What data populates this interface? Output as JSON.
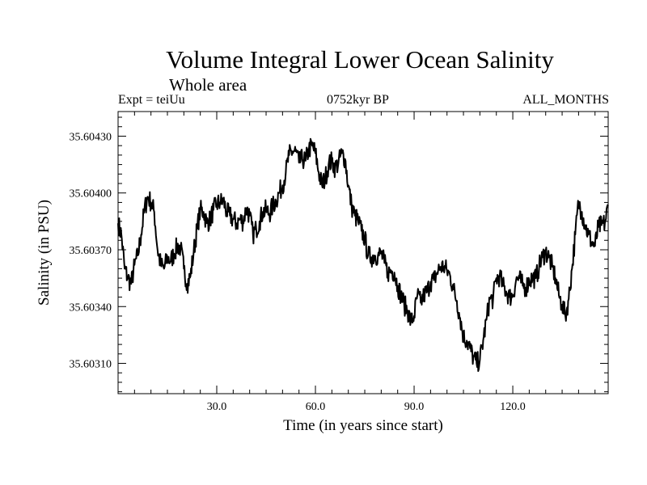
{
  "chart_data": {
    "type": "line",
    "title": "Volume Integral Lower Ocean Salinity",
    "subtitle": "Whole area",
    "header_left": "Expt = teiUu",
    "header_center": "0752kyr BP",
    "header_right": "ALL_MONTHS",
    "xlabel": "Time (in years since start)",
    "ylabel": "Salinity (in PSU)",
    "xlim": [
      0,
      149
    ],
    "ylim": [
      35.60294,
      35.60443
    ],
    "xticks": [
      30,
      60,
      90,
      120
    ],
    "xtick_labels": [
      "30.0",
      "60.0",
      "90.0",
      "120.0"
    ],
    "yticks": [
      35.6031,
      35.6034,
      35.6037,
      35.604,
      35.6043
    ],
    "ytick_labels": [
      "35.60310",
      "35.60340",
      "35.60370",
      "35.60400",
      "35.60430"
    ],
    "series": [
      {
        "name": "Salinity",
        "x": [
          0,
          1,
          2,
          3,
          4,
          5,
          6,
          7,
          8,
          9,
          10,
          11,
          12,
          13,
          14,
          15,
          16,
          17,
          18,
          19,
          20,
          21,
          22,
          23,
          24,
          25,
          26,
          27,
          28,
          29,
          30,
          31,
          32,
          33,
          34,
          35,
          36,
          37,
          38,
          39,
          40,
          41,
          42,
          43,
          44,
          45,
          46,
          47,
          48,
          49,
          50,
          51,
          52,
          53,
          54,
          55,
          56,
          57,
          58,
          59,
          60,
          61,
          62,
          63,
          64,
          65,
          66,
          67,
          68,
          69,
          70,
          71,
          72,
          73,
          74,
          75,
          76,
          77,
          78,
          79,
          80,
          81,
          82,
          83,
          84,
          85,
          86,
          87,
          88,
          89,
          90,
          91,
          92,
          93,
          94,
          95,
          96,
          97,
          98,
          99,
          100,
          101,
          102,
          103,
          104,
          105,
          106,
          107,
          108,
          109,
          110,
          111,
          112,
          113,
          114,
          115,
          116,
          117,
          118,
          119,
          120,
          121,
          122,
          123,
          124,
          125,
          126,
          127,
          128,
          129,
          130,
          131,
          132,
          133,
          134,
          135,
          136,
          137,
          138,
          139,
          140,
          141,
          142,
          143,
          144,
          145,
          146,
          147,
          148,
          149
        ],
        "values": [
          35.60384,
          35.60378,
          35.6036,
          35.60355,
          35.60352,
          35.60362,
          35.60367,
          35.60378,
          35.60391,
          35.60398,
          35.60395,
          35.6039,
          35.6037,
          35.60362,
          35.6036,
          35.60366,
          35.60364,
          35.60368,
          35.60372,
          35.60371,
          35.6036,
          35.60352,
          35.60356,
          35.60369,
          35.60381,
          35.60391,
          35.6039,
          35.60384,
          35.60386,
          35.60391,
          35.60394,
          35.60395,
          35.60396,
          35.6039,
          35.60388,
          35.60386,
          35.60384,
          35.60386,
          35.60385,
          35.60392,
          35.60388,
          35.60378,
          35.60381,
          35.60385,
          35.6039,
          35.60391,
          35.60389,
          35.60393,
          35.60396,
          35.604,
          35.60404,
          35.60411,
          35.6042,
          35.60422,
          35.60422,
          35.60416,
          35.60418,
          35.60417,
          35.60423,
          35.60425,
          35.60421,
          35.60411,
          35.60404,
          35.60408,
          35.60415,
          35.60417,
          35.60413,
          35.60416,
          35.60421,
          35.60418,
          35.60404,
          35.60393,
          35.60388,
          35.60385,
          35.6038,
          35.60376,
          35.60367,
          35.60366,
          35.60367,
          35.60367,
          35.60368,
          35.60363,
          35.60358,
          35.60359,
          35.60358,
          35.60351,
          35.60346,
          35.60341,
          35.60338,
          35.60332,
          35.60335,
          35.60346,
          35.60342,
          35.60346,
          35.60348,
          35.60353,
          35.60354,
          35.60358,
          35.60361,
          35.60361,
          35.60359,
          35.60356,
          35.60349,
          35.60343,
          35.60334,
          35.60324,
          35.60322,
          35.60318,
          35.60313,
          35.6031,
          35.60312,
          35.60322,
          35.60333,
          35.60344,
          35.60344,
          35.60355,
          35.60356,
          35.60351,
          35.60348,
          35.60345,
          35.60346,
          35.60354,
          35.60355,
          35.60351,
          35.6035,
          35.60354,
          35.60355,
          35.60355,
          35.60361,
          35.60366,
          35.60369,
          35.60366,
          35.60361,
          35.60355,
          35.60346,
          35.60341,
          35.60335,
          35.60344,
          35.6036,
          35.60378,
          35.60395,
          35.6039,
          35.60383,
          35.60378,
          35.60374,
          35.60372,
          35.60382,
          35.60383,
          35.60384,
          35.60393
        ]
      }
    ]
  }
}
